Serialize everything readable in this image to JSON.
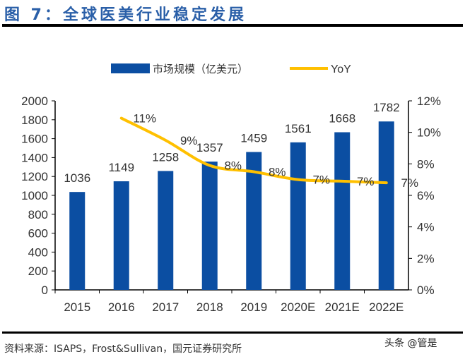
{
  "title": "图 7：全球医美行业稳定发展",
  "source": "资料来源：ISAPS，Frost&Sullivan，国元证券研究所",
  "watermark": "头条 @管是",
  "chart_data": {
    "type": "bar+line",
    "categories": [
      "2015",
      "2016",
      "2017",
      "2018",
      "2019",
      "2020E",
      "2021E",
      "2022E"
    ],
    "series": [
      {
        "name": "市场规模（亿美元）",
        "type": "bar",
        "axis": "left",
        "color": "#0b4ea2",
        "values": [
          1036,
          1149,
          1258,
          1357,
          1459,
          1561,
          1668,
          1782
        ],
        "labels": [
          "1036",
          "1149",
          "1258",
          "1357",
          "1459",
          "1561",
          "1668",
          "1782"
        ]
      },
      {
        "name": "YoY",
        "type": "line",
        "axis": "right",
        "color": "#ffc000",
        "values": [
          null,
          10.9,
          9.5,
          7.9,
          7.5,
          7.0,
          6.9,
          6.8
        ],
        "labels": [
          "",
          "11%",
          "9%",
          "8%",
          "8%",
          "7%",
          "7%",
          "7%"
        ]
      }
    ],
    "ylim_left": [
      0,
      2000
    ],
    "yticks_left": [
      "0",
      "200",
      "400",
      "600",
      "800",
      "1000",
      "1200",
      "1400",
      "1600",
      "1800",
      "2000"
    ],
    "ylim_right": [
      0,
      12
    ],
    "yticks_right": [
      "0%",
      "2%",
      "4%",
      "6%",
      "8%",
      "10%",
      "12%"
    ],
    "grid": false,
    "legend": "top"
  }
}
